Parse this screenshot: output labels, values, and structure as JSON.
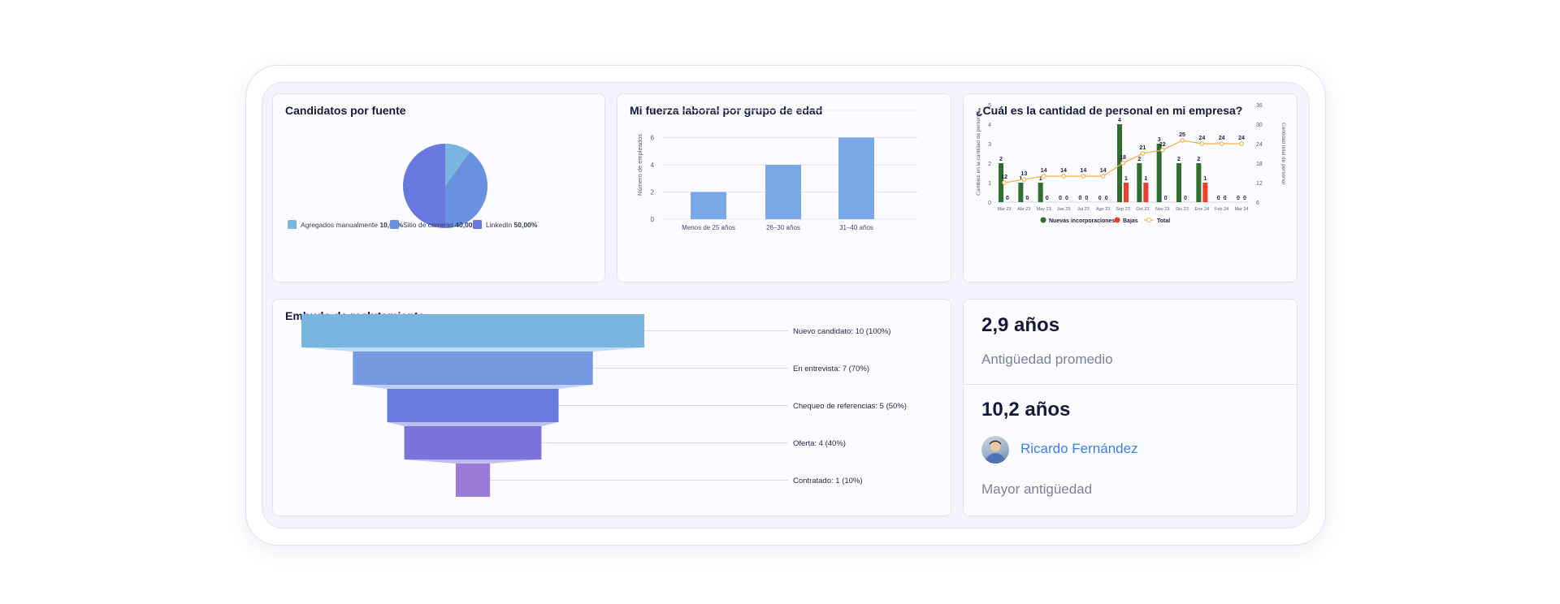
{
  "colors": {
    "pie": [
      "#7ab5df",
      "#6a90e0",
      "#6878de"
    ],
    "age_bar": "#7aa8e8",
    "new_hires": "#2f6e2f",
    "leavers": "#f0402b",
    "total_line": "#f0b04a",
    "funnel": [
      "#7ab5df",
      "#7499e2",
      "#6a7ddf",
      "#7d72da",
      "#9b7ad8"
    ],
    "link": "#3a7fe0"
  },
  "cards": {
    "sources_title": "Candidatos por fuente",
    "age_title": "Mi fuerza laboral por grupo de edad",
    "headcount_title": "¿Cuál es la cantidad de personal en mi empresa?",
    "funnel_title": "Embudo de reclutamiento"
  },
  "stats": {
    "avg_tenure_value": "2,9 años",
    "avg_tenure_label": "Antigüedad promedio",
    "max_tenure_value": "10,2 años",
    "max_tenure_person": "Ricardo Fernández",
    "max_tenure_label": "Mayor antigüedad",
    "avatar_icon": "person-avatar"
  },
  "chart_data": [
    {
      "type": "pie",
      "title": "Candidatos por fuente",
      "categories": [
        "Agregados manualmente",
        "Sitio de carreras",
        "LinkedIn"
      ],
      "values": [
        10,
        40,
        50
      ],
      "value_labels": [
        "10,00%",
        "40,00%",
        "50,00%"
      ],
      "legend": "bottom"
    },
    {
      "type": "bar",
      "title": "Mi fuerza laboral por grupo de edad",
      "categories": [
        "Menos de 25 años",
        "26–30 años",
        "31–40 años"
      ],
      "values": [
        2,
        4,
        6
      ],
      "ylabel": "Número de empleados",
      "ylim": [
        0,
        8
      ],
      "yticks": [
        0,
        2,
        4,
        6,
        8
      ],
      "grid": true
    },
    {
      "type": "bar",
      "title": "¿Cuál es la cantidad de personal en mi empresa?",
      "categories": [
        "Mar 23",
        "Abr 23",
        "May 23",
        "Jun 23",
        "Jul 23",
        "Ago 23",
        "Sep 23",
        "Oct 23",
        "Nov 23",
        "Dic 23",
        "Ene 24",
        "Feb 24",
        "Mar 24"
      ],
      "series": [
        {
          "name": "Nuevas incorporaciones",
          "values": [
            2,
            1,
            1,
            0,
            0,
            0,
            4,
            2,
            3,
            2,
            2,
            0,
            0
          ]
        },
        {
          "name": "Bajas",
          "values": [
            0,
            0,
            0,
            0,
            0,
            0,
            1,
            1,
            0,
            0,
            1,
            0,
            0
          ]
        },
        {
          "name": "Total",
          "values": [
            12,
            13,
            14,
            14,
            14,
            14,
            18,
            21,
            22,
            25,
            24,
            24,
            24
          ]
        }
      ],
      "point_labels": [
        "12",
        "13",
        "14",
        "14",
        "14",
        "14",
        "18",
        "21",
        "22",
        "25",
        "24",
        "24",
        "24"
      ],
      "ylabel": "Cambios en la cantidad de personal",
      "y2label": "Cantidad total de personal",
      "ylim": [
        0,
        5
      ],
      "yticks": [
        0,
        1,
        2,
        3,
        4,
        5
      ],
      "y2lim": [
        6,
        36
      ],
      "y2ticks": [
        6,
        12,
        18,
        24,
        30,
        36
      ],
      "legend": "bottom"
    },
    {
      "type": "bar",
      "title": "Embudo de reclutamiento",
      "categories": [
        "Nuevo candidato",
        "En entrevista",
        "Chequeo de referencias",
        "Oferta",
        "Contratado"
      ],
      "values": [
        10,
        7,
        5,
        4,
        1
      ],
      "labels": [
        "Nuevo candidato: 10 (100%)",
        "En entrevista: 7 (70%)",
        "Chequeo de referencias: 5 (50%)",
        "Oferta: 4 (40%)",
        "Contratado: 1 (10%)"
      ]
    }
  ]
}
